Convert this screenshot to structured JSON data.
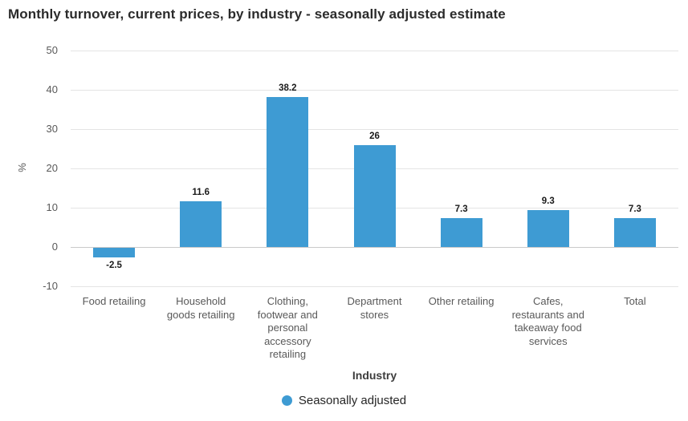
{
  "title": "Monthly turnover, current prices, by industry - seasonally adjusted estimate",
  "colors": {
    "bar": "#3E9BD3",
    "grid": "#e4e4e4",
    "zero_line": "#c9c9c9",
    "axis_text": "#595959",
    "title_text": "#2b2b2b",
    "label_text": "#1a1a1a"
  },
  "chart_data": {
    "type": "bar",
    "title": "Monthly turnover, current prices, by industry - seasonally adjusted estimate",
    "categories": [
      "Food retailing",
      "Household goods retailing",
      "Clothing, footwear and personal accessory retailing",
      "Department stores",
      "Other retailing",
      "Cafes, restaurants and takeaway food services",
      "Total"
    ],
    "values": [
      -2.5,
      11.6,
      38.2,
      26,
      7.3,
      9.3,
      7.3
    ],
    "data_labels": [
      "-2.5",
      "11.6",
      "38.2",
      "26",
      "7.3",
      "9.3",
      "7.3"
    ],
    "series_name": "Seasonally adjusted",
    "xlabel": "Industry",
    "ylabel": "%",
    "ylim": [
      -10,
      50
    ],
    "yticks": [
      50,
      40,
      30,
      20,
      10,
      0,
      -10
    ],
    "grid": true,
    "legend": {
      "position": "bottom",
      "items": [
        {
          "label": "Seasonally adjusted",
          "color": "#3E9BD3"
        }
      ]
    }
  }
}
